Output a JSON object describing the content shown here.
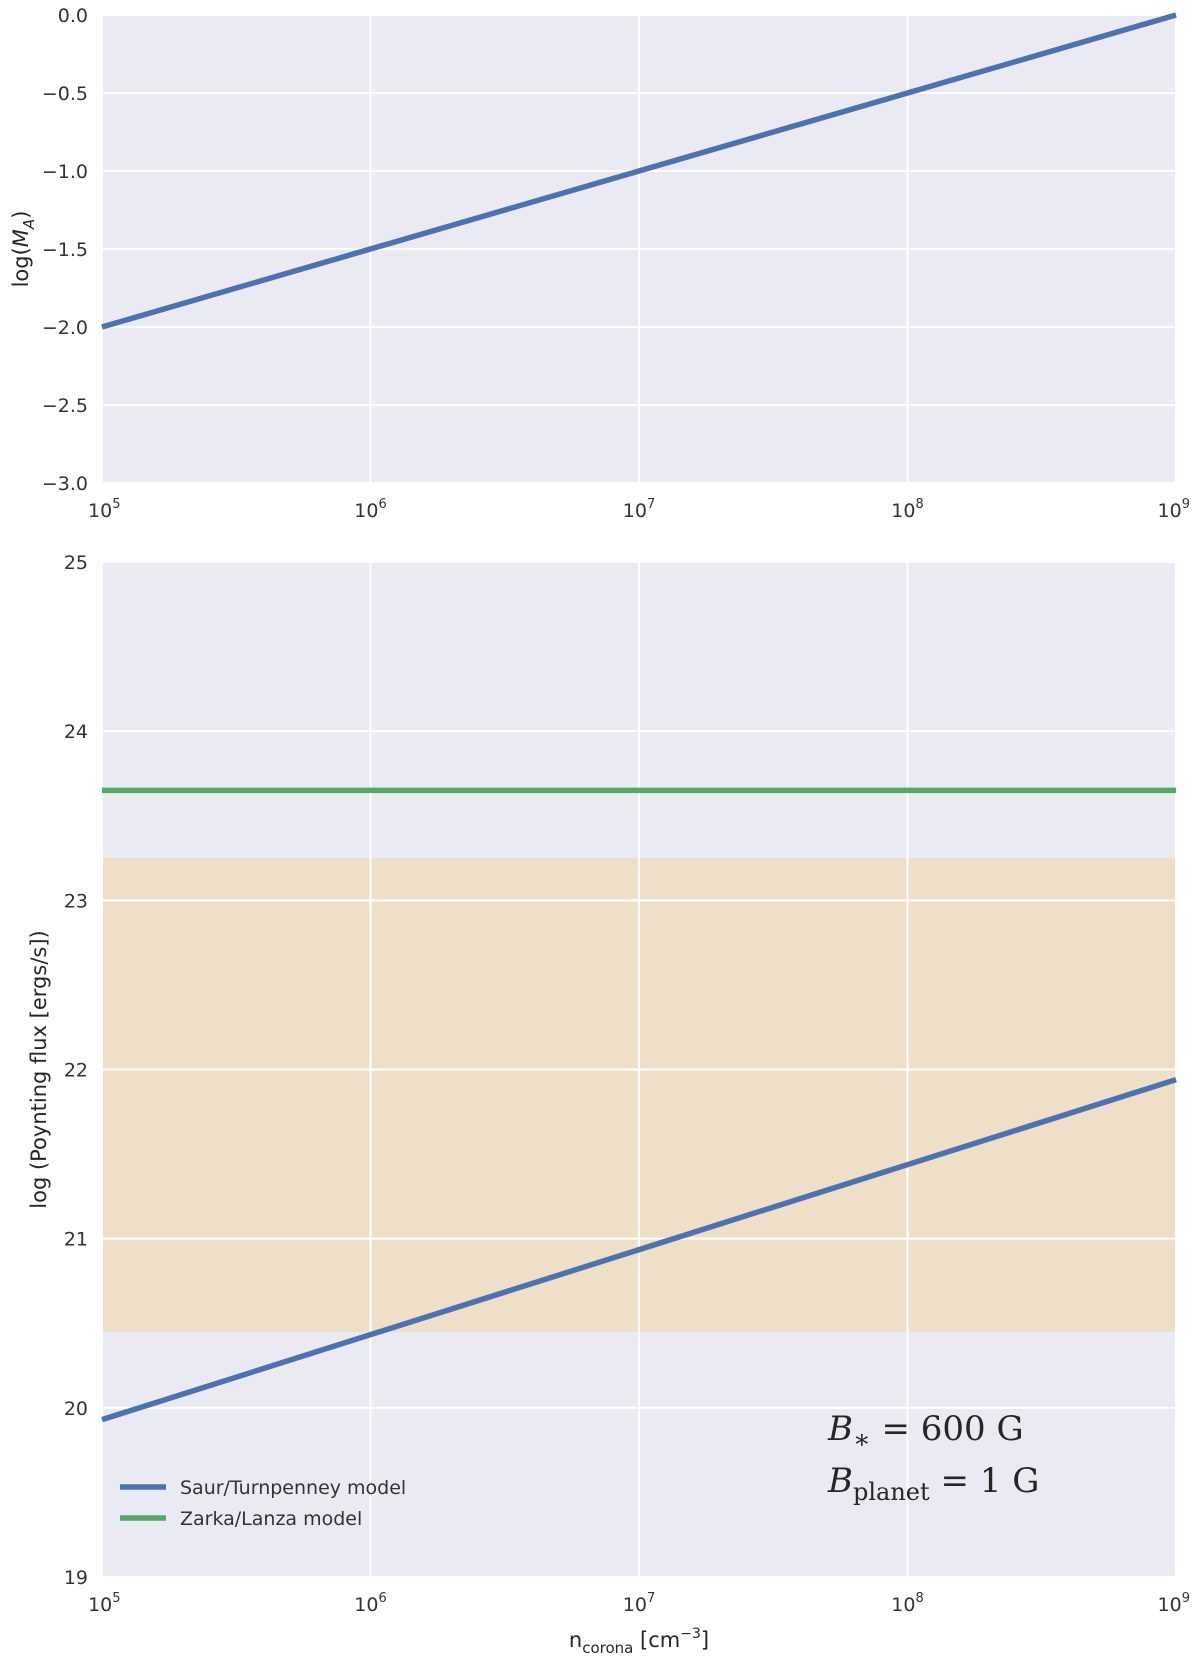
{
  "chart_data": [
    {
      "type": "line",
      "xscale": "log",
      "xlim": [
        100000,
        1000000000
      ],
      "ylim": [
        -3.0,
        0.0
      ],
      "grid": true,
      "ylabel": "log(M_A)",
      "ylabel_base": "log(",
      "ylabel_var": "M",
      "ylabel_sub": "A",
      "ylabel_close": ")",
      "xticks": [
        {
          "value": 100000,
          "base": "10",
          "exp": "5"
        },
        {
          "value": 1000000,
          "base": "10",
          "exp": "6"
        },
        {
          "value": 10000000,
          "base": "10",
          "exp": "7"
        },
        {
          "value": 100000000,
          "base": "10",
          "exp": "8"
        },
        {
          "value": 1000000000,
          "base": "10",
          "exp": "9"
        }
      ],
      "yticks": [
        {
          "value": 0.0,
          "label": "0.0"
        },
        {
          "value": -0.5,
          "label": "−0.5"
        },
        {
          "value": -1.0,
          "label": "−1.0"
        },
        {
          "value": -1.5,
          "label": "−1.5"
        },
        {
          "value": -2.0,
          "label": "−2.0"
        },
        {
          "value": -2.5,
          "label": "−2.5"
        },
        {
          "value": -3.0,
          "label": "−3.0"
        }
      ],
      "series": [
        {
          "color": "#4c72b0",
          "x": [
            100000,
            1000000000
          ],
          "y": [
            -2.0,
            0.0
          ]
        }
      ]
    },
    {
      "type": "line",
      "xscale": "log",
      "xlim": [
        100000,
        1000000000
      ],
      "ylim": [
        19,
        25
      ],
      "grid": true,
      "ylabel": "log (Poynting flux [ergs/s])",
      "xlabel_base": "n",
      "xlabel_sub": "corona",
      "xlabel_unit": " [cm",
      "xlabel_exp": "−3",
      "xlabel_close": "]",
      "xticks": [
        {
          "value": 100000,
          "base": "10",
          "exp": "5"
        },
        {
          "value": 1000000,
          "base": "10",
          "exp": "6"
        },
        {
          "value": 10000000,
          "base": "10",
          "exp": "7"
        },
        {
          "value": 100000000,
          "base": "10",
          "exp": "8"
        },
        {
          "value": 1000000000,
          "base": "10",
          "exp": "9"
        }
      ],
      "yticks": [
        {
          "value": 25,
          "label": "25"
        },
        {
          "value": 24,
          "label": "24"
        },
        {
          "value": 23,
          "label": "23"
        },
        {
          "value": 22,
          "label": "22"
        },
        {
          "value": 21,
          "label": "21"
        },
        {
          "value": 20,
          "label": "20"
        },
        {
          "value": 19,
          "label": "19"
        }
      ],
      "band": {
        "y0": 20.45,
        "y1": 23.25,
        "color": "#f0dfc8"
      },
      "series": [
        {
          "name": "Saur/Turnpenney model",
          "color": "#4c72b0",
          "x": [
            100000,
            1000000000
          ],
          "y": [
            19.93,
            21.94
          ]
        },
        {
          "name": "Zarka/Lanza model",
          "color": "#55a868",
          "x": [
            100000,
            1000000000
          ],
          "y": [
            23.65,
            23.65
          ]
        }
      ],
      "legend_loc": "lower-left",
      "annotation": {
        "line1_var": "B",
        "line1_sub": "∗",
        "line1_rest": " = 600 G",
        "line2_var": "B",
        "line2_sub": "planet",
        "line2_rest": " = 1 G"
      }
    }
  ]
}
